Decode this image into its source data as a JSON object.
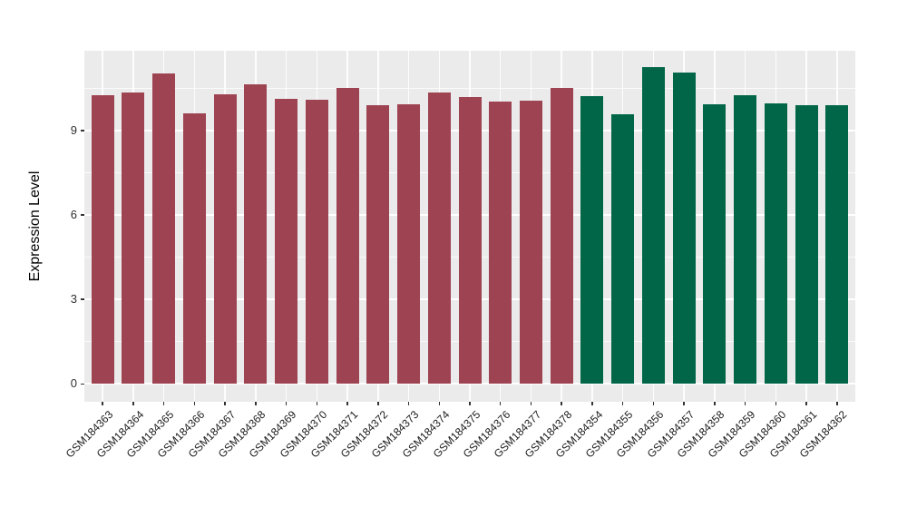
{
  "figure": {
    "background": "#FFFFFF",
    "panel_background": "#EBEBEB",
    "grid_color": "#FFFFFF",
    "tick_color": "#333333",
    "text_color": "#1A1A1A"
  },
  "chart_data": {
    "type": "bar",
    "title": "",
    "xlabel": "",
    "ylabel": "Expression Level",
    "ylim": [
      -0.64,
      11.82
    ],
    "yticks": [
      0,
      3,
      6,
      9
    ],
    "yticks_minor": [
      1.5,
      4.5,
      7.5,
      10.5
    ],
    "grid": true,
    "legend": "none",
    "groups": [
      {
        "name": "group-1",
        "color": "#9E4352",
        "categories": [
          "GSM184363",
          "GSM184364",
          "GSM184365",
          "GSM184366",
          "GSM184367",
          "GSM184368",
          "GSM184369",
          "GSM184370",
          "GSM184371",
          "GSM184372",
          "GSM184373",
          "GSM184374",
          "GSM184375",
          "GSM184376",
          "GSM184377",
          "GSM184378"
        ],
        "values": [
          10.26,
          10.34,
          11.02,
          9.59,
          10.27,
          10.65,
          10.13,
          10.08,
          10.49,
          9.89,
          9.94,
          10.33,
          10.18,
          10.02,
          10.06,
          10.49
        ]
      },
      {
        "name": "group-2",
        "color": "#006647",
        "categories": [
          "GSM184354",
          "GSM184355",
          "GSM184356",
          "GSM184357",
          "GSM184358",
          "GSM184359",
          "GSM184360",
          "GSM184361",
          "GSM184362"
        ],
        "values": [
          10.23,
          9.56,
          11.23,
          11.05,
          9.92,
          10.26,
          9.96,
          9.89,
          9.9
        ]
      }
    ]
  }
}
